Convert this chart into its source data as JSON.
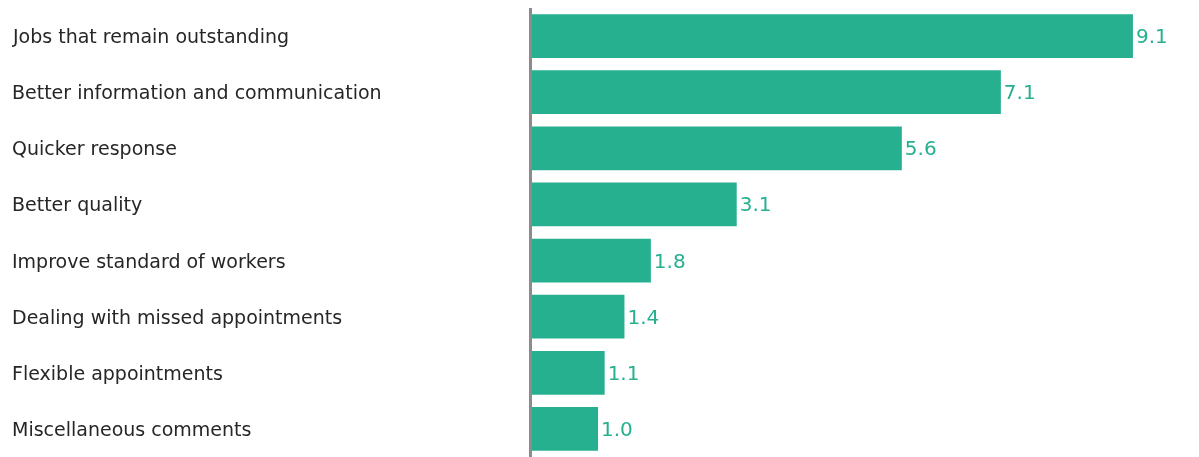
{
  "chart_data": {
    "type": "bar",
    "orientation": "horizontal",
    "categories": [
      "Jobs that remain outstanding",
      "Better information and communication",
      "Quicker response",
      "Better quality",
      "Improve standard of workers",
      "Dealing with missed appointments",
      "Flexible appointments",
      "Miscellaneous comments"
    ],
    "values": [
      9.1,
      7.1,
      5.6,
      3.1,
      1.8,
      1.4,
      1.1,
      1.0
    ],
    "value_labels": [
      "9.1",
      "7.1",
      "5.6",
      "3.1",
      "1.8",
      "1.4",
      "1.1",
      "1.0"
    ],
    "color": "#26b08f",
    "tick_labels": "y"
  }
}
